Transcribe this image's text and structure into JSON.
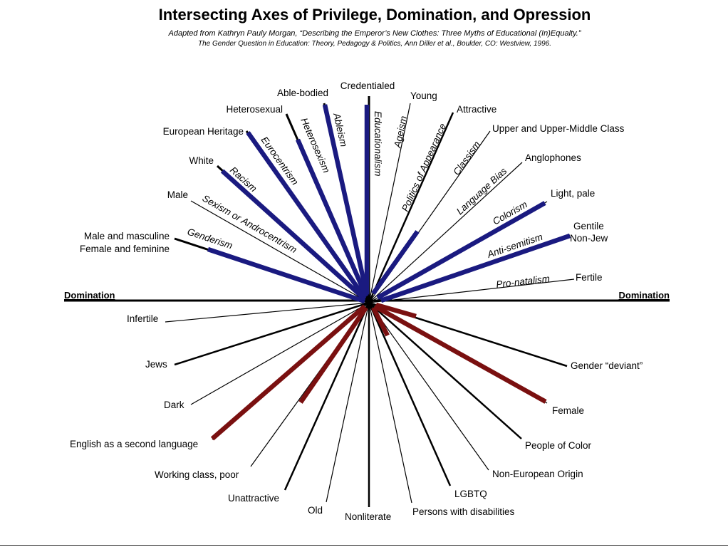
{
  "header": {
    "title": "Intersecting Axes of Privilege, Domination, and Opression",
    "citation_line1": "Adapted from Kathryn Pauly Morgan, “Describing the Emperor’s New Clothes: Three Myths of Educational (In)Equalty.”",
    "citation_line2_book": "The Gender Question in Education: Theory, Pedagogy & Politics,",
    "citation_line2_authors": "Ann Diller et al.,",
    "citation_line2_publisher": "Boulder, CO: Westview, 1996."
  },
  "colors": {
    "privileged_bar": "#1a1a80",
    "oppressed_bar": "#7a1010",
    "line": "#000000"
  },
  "domination_left": "Domination",
  "domination_right": "Domination",
  "privileged_labels": {
    "male_masculine": "Male and masculine",
    "female_feminine": "Female and feminine",
    "male": "Male",
    "white": "White",
    "european_heritage": "European Heritage",
    "heterosexual": "Heterosexual",
    "able_bodied": "Able-bodied",
    "credentialed": "Credentialed",
    "young": "Young",
    "attractive": "Attractive",
    "upper_class": "Upper and Upper-Middle Class",
    "anglophones": "Anglophones",
    "light_pale": "Light, pale",
    "gentile": "Gentile",
    "non_jew": "Non-Jew",
    "fertile": "Fertile"
  },
  "oppressed_labels": {
    "infertile": "Infertile",
    "jews": "Jews",
    "dark": "Dark",
    "esl": "English as a second language",
    "working_class": "Working class, poor",
    "unattractive": "Unattractive",
    "old": "Old",
    "nonliterate": "Nonliterate",
    "disabilities": "Persons with disabilities",
    "lgbtq": "LGBTQ",
    "non_european": "Non-European Origin",
    "people_of_color": "People of Color",
    "female": "Female",
    "gender_deviant": "Gender “deviant”"
  },
  "axes": {
    "genderism": "Genderism",
    "sexism": "Sexism or Androcentrism",
    "racism": "Racism",
    "eurocentrism": "Eurocentrism",
    "heterosexism": "Heterosexism",
    "ableism": "Ableism",
    "educationalism": "Educationalism",
    "ageism": "Ageism",
    "appearance": "Politics of Appearance",
    "classism": "Classism",
    "language_bias": "Language Bias",
    "colorism": "Colorism",
    "anti_semitism": "Anti-semitism",
    "pro_natalism": "Pro-natalism"
  }
}
